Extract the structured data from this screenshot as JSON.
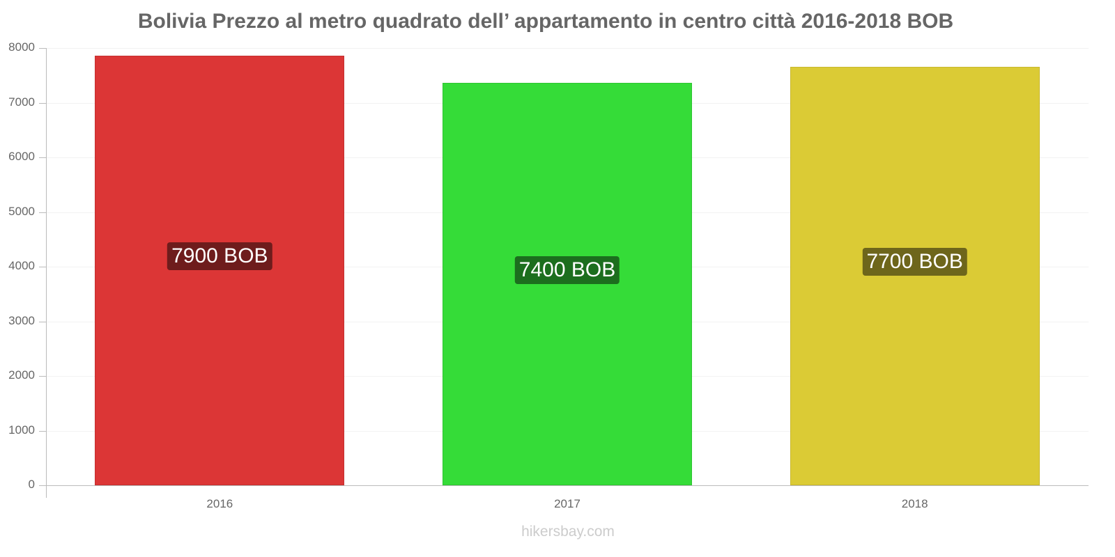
{
  "title": "Bolivia Prezzo al metro quadrato dell’ appartamento in centro città 2016-2018 BOB",
  "footer": "hikersbay.com",
  "y_ticks": [
    "0",
    "1000",
    "2000",
    "3000",
    "4000",
    "5000",
    "6000",
    "7000",
    "8000"
  ],
  "bars": [
    {
      "year": "2016",
      "value": 7900,
      "label": "7900 BOB",
      "color": "#dc3636",
      "border": "#c43030",
      "label_bg": "#6e1c1c"
    },
    {
      "year": "2017",
      "value": 7400,
      "label": "7400 BOB",
      "color": "#35dc38",
      "border": "#2fc432",
      "label_bg": "#1c6e1e"
    },
    {
      "year": "2018",
      "value": 7700,
      "label": "7700 BOB",
      "color": "#dbcb35",
      "border": "#c7b72e",
      "label_bg": "#6e661b"
    }
  ],
  "chart_data": {
    "type": "bar",
    "title": "Bolivia Prezzo al metro quadrato dell’ appartamento in centro città 2016-2018 BOB",
    "categories": [
      "2016",
      "2017",
      "2018"
    ],
    "values": [
      7900,
      7400,
      7700
    ],
    "data_labels": [
      "7900 BOB",
      "7400 BOB",
      "7700 BOB"
    ],
    "colors": [
      "#dc3636",
      "#35dc38",
      "#dbcb35"
    ],
    "xlabel": "",
    "ylabel": "",
    "ylim": [
      0,
      8000
    ],
    "yticks": [
      0,
      1000,
      2000,
      3000,
      4000,
      5000,
      6000,
      7000,
      8000
    ],
    "grid": true,
    "legend": "none",
    "source": "hikersbay.com"
  }
}
